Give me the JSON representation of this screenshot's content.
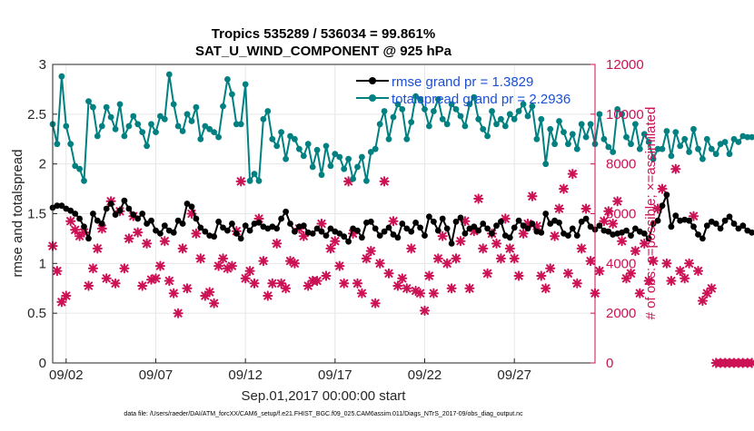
{
  "chart_data": {
    "type": "line",
    "title_line1": "Tropics 535289 / 536034 = 99.861%",
    "title_line2": "SAT_U_WIND_COMPONENT @ 925 hPa",
    "xlabel": "Sep.01,2017 00:00:00 start",
    "ylabel_left": "rmse and totalspread",
    "ylabel_right": "# of obs: o=possible; ×=assimilated",
    "ylim_left": [
      0,
      3
    ],
    "ylim_right": [
      0,
      12000
    ],
    "xlim_days": [
      0.25,
      30.5
    ],
    "x_ticks": [
      {
        "day": 1,
        "label": "09/02"
      },
      {
        "day": 6,
        "label": "09/07"
      },
      {
        "day": 11,
        "label": "09/12"
      },
      {
        "day": 16,
        "label": "09/17"
      },
      {
        "day": 21,
        "label": "09/22"
      },
      {
        "day": 26,
        "label": "09/27"
      }
    ],
    "y_ticks_left": [
      "0",
      "0.5",
      "1",
      "1.5",
      "2",
      "2.5",
      "3"
    ],
    "y_ticks_right": [
      "0",
      "2000",
      "4000",
      "6000",
      "8000",
      "10000",
      "12000"
    ],
    "legend": {
      "rmse_label": "rmse grand pr = 1.3829",
      "spread_label": "totalspread grand pr = 2.2936",
      "placement": "top-right"
    },
    "footer": "data file: /Users/raeder/DAI/ATM_forcXX/CAM6_setup/f.e21.FHIST_BGC.f09_025.CAM6assim.011/Diags_NTrS_2017-09/obs_diag_output.nc",
    "colors": {
      "rmse": "#000000",
      "spread": "#008080",
      "obs": "#cc1155",
      "right_axis": "#cc1155"
    },
    "series": [
      {
        "name": "rmse",
        "axis": "left",
        "x_start": 0.25,
        "x_step": 0.25,
        "values": [
          1.56,
          1.58,
          1.58,
          1.55,
          1.53,
          1.5,
          1.45,
          1.37,
          1.25,
          1.5,
          1.43,
          1.4,
          1.55,
          1.6,
          1.49,
          1.53,
          1.63,
          1.55,
          1.49,
          1.45,
          1.5,
          1.4,
          1.43,
          1.33,
          1.3,
          1.38,
          1.33,
          1.31,
          1.43,
          1.4,
          1.6,
          1.57,
          1.45,
          1.36,
          1.32,
          1.28,
          1.27,
          1.42,
          1.36,
          1.33,
          1.4,
          1.3,
          1.25,
          1.38,
          1.33,
          1.4,
          1.41,
          1.37,
          1.35,
          1.37,
          1.35,
          1.45,
          1.52,
          1.4,
          1.32,
          1.37,
          1.38,
          1.31,
          1.3,
          1.35,
          1.32,
          1.28,
          1.35,
          1.32,
          1.3,
          1.27,
          1.22,
          1.35,
          1.33,
          1.26,
          1.41,
          1.42,
          1.35,
          1.28,
          1.32,
          1.36,
          1.29,
          1.26,
          1.4,
          1.35,
          1.32,
          1.41,
          1.36,
          1.28,
          1.47,
          1.42,
          1.33,
          1.45,
          1.35,
          1.2,
          1.42,
          1.46,
          1.3,
          1.35,
          1.37,
          1.33,
          1.4,
          1.35,
          1.3,
          1.38,
          1.42,
          1.28,
          1.26,
          1.36,
          1.43,
          1.38,
          1.35,
          1.4,
          1.32,
          1.31,
          1.5,
          1.4,
          1.43,
          1.41,
          1.3,
          1.28,
          1.35,
          1.28,
          1.42,
          1.45,
          1.37,
          1.34,
          1.38,
          1.33,
          1.32,
          1.29,
          1.3,
          1.31,
          1.33,
          1.28,
          1.35,
          1.32,
          1.3,
          1.25,
          1.4,
          1.43,
          1.58,
          1.69,
          1.37,
          1.48,
          1.43,
          1.44,
          1.43,
          1.37,
          1.29,
          1.25,
          1.38,
          1.42,
          1.4,
          1.35,
          1.43,
          1.47,
          1.4,
          1.35,
          1.38,
          1.33,
          1.31
        ]
      },
      {
        "name": "totalspread",
        "axis": "left",
        "x_start": 0.25,
        "x_step": 0.25,
        "values": [
          2.4,
          2.2,
          2.88,
          2.38,
          2.2,
          1.98,
          1.95,
          1.83,
          2.63,
          2.57,
          2.28,
          2.38,
          2.57,
          2.47,
          2.35,
          2.6,
          2.28,
          2.38,
          2.48,
          2.4,
          2.32,
          2.18,
          2.4,
          2.32,
          2.48,
          2.45,
          2.9,
          2.6,
          2.38,
          2.33,
          2.5,
          2.43,
          2.57,
          2.25,
          2.38,
          2.35,
          2.32,
          2.27,
          2.58,
          2.85,
          2.7,
          2.4,
          2.4,
          2.8,
          1.83,
          1.9,
          1.83,
          2.45,
          2.53,
          2.25,
          2.18,
          2.32,
          2.05,
          2.28,
          2.25,
          2.15,
          2.08,
          2.2,
          1.97,
          2.14,
          1.89,
          2.18,
          1.98,
          2.1,
          2.07,
          1.95,
          2.05,
          1.85,
          1.97,
          2.07,
          1.83,
          2.12,
          2.15,
          2.4,
          2.53,
          2.25,
          2.47,
          2.6,
          2.55,
          2.25,
          2.42,
          2.68,
          2.65,
          2.55,
          2.38,
          2.53,
          2.65,
          2.45,
          2.4,
          2.6,
          2.55,
          2.48,
          2.38,
          2.6,
          2.67,
          2.45,
          2.35,
          2.28,
          2.53,
          2.4,
          2.45,
          2.38,
          2.5,
          2.45,
          2.53,
          2.6,
          2.48,
          2.58,
          2.25,
          2.45,
          2.0,
          2.35,
          2.2,
          2.43,
          2.32,
          2.2,
          2.3,
          2.15,
          2.4,
          2.27,
          2.4,
          2.2,
          2.5,
          2.25,
          2.17,
          2.12,
          2.55,
          2.5,
          2.27,
          2.2,
          2.4,
          2.15,
          2.3,
          2.22,
          2.05,
          2.15,
          2.15,
          2.33,
          2.08,
          2.32,
          2.18,
          2.25,
          2.12,
          2.35,
          2.15,
          2.05,
          2.25,
          2.15,
          2.1,
          2.2,
          2.22,
          2.1,
          2.25,
          2.22,
          2.28,
          2.27,
          2.27
        ]
      },
      {
        "name": "obs_assimilated",
        "axis": "right",
        "x_start": 0.25,
        "x_step": 0.25,
        "values": [
          4700,
          3700,
          2450,
          2700,
          5700,
          5350,
          5100,
          5250,
          3100,
          3800,
          4600,
          5400,
          3400,
          6500,
          3200,
          6100,
          3800,
          5000,
          5900,
          5250,
          3100,
          4800,
          3350,
          3400,
          3900,
          4900,
          3300,
          2800,
          2000,
          4600,
          3000,
          6000,
          5200,
          4200,
          2700,
          2850,
          2400,
          3900,
          4200,
          3800,
          3900,
          5300,
          7300,
          3400,
          3700,
          3200,
          5800,
          4100,
          2700,
          3200,
          4800,
          3200,
          3000,
          4100,
          4000,
          5400,
          5100,
          3100,
          3300,
          3300,
          5600,
          3500,
          4600,
          4900,
          3900,
          3200,
          7300,
          5200,
          3200,
          2800,
          4200,
          4500,
          2400,
          4000,
          7300,
          3600,
          5700,
          3100,
          3400,
          3000,
          4600,
          2900,
          2800,
          2100,
          3500,
          2800,
          4200,
          5100,
          4000,
          3000,
          4200,
          4900,
          5700,
          3000,
          5300,
          6600,
          4600,
          3600,
          5200,
          4800,
          4200,
          5800,
          4600,
          4200,
          3500,
          5200,
          5600,
          6700,
          5500,
          3500,
          3000,
          3800,
          5100,
          6200,
          7000,
          3600,
          7600,
          3200,
          4600,
          6200,
          4100,
          2800,
          3700,
          5700,
          6100,
          5600,
          6500,
          4900,
          3400,
          3600,
          4500,
          2800,
          4800,
          3300,
          4100,
          6200,
          7000,
          4000,
          3300,
          7800,
          3700,
          3400,
          4000,
          5900,
          3700,
          2500,
          2800,
          3000,
          0,
          0,
          0,
          0,
          0,
          0,
          0,
          0,
          0
        ]
      }
    ]
  }
}
